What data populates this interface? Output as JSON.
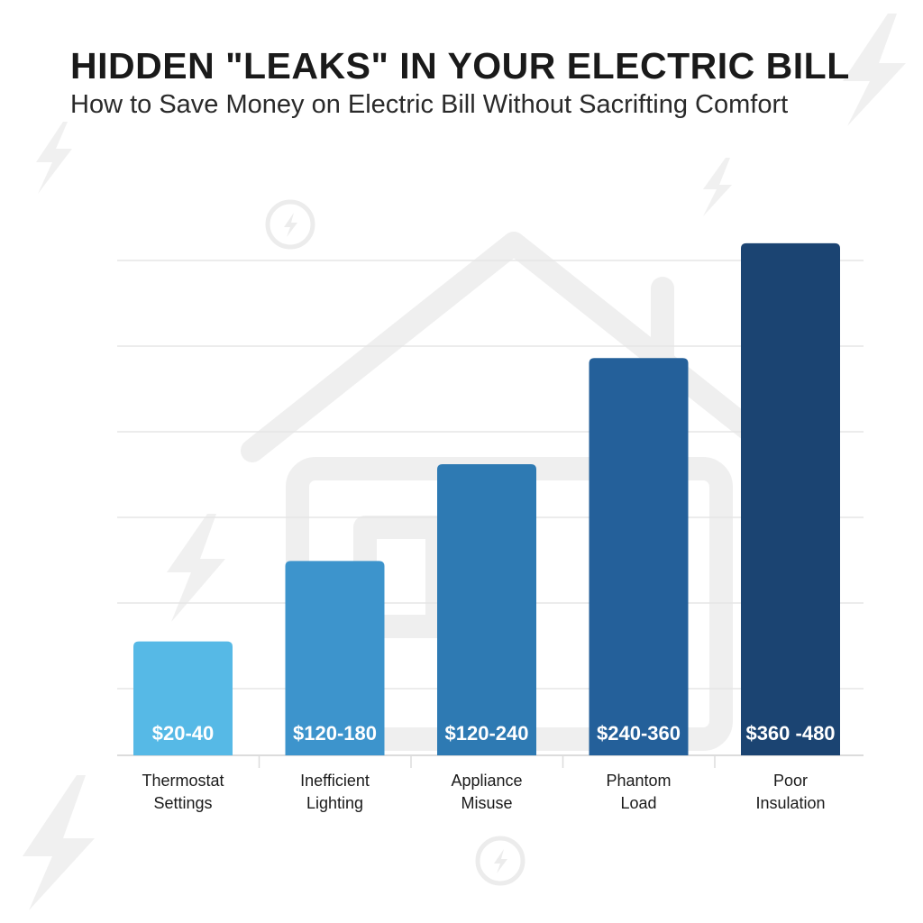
{
  "header": {
    "title": "HIDDEN \"LEAKS\" IN YOUR ELECTRIC BILL",
    "subtitle": "How to Save Money on Electric Bill Without Sacrifting Comfort"
  },
  "chart_data": {
    "type": "bar",
    "title": "HIDDEN \"LEAKS\" IN YOUR ELECTRIC BILL",
    "subtitle": "How to Save Money on Electric Bill Without Sacrifting Comfort",
    "categories": [
      [
        "Thermostat",
        "Settings"
      ],
      [
        "Inefficient",
        "Lighting"
      ],
      [
        "Appliance",
        "Misuse"
      ],
      [
        "Phantom",
        "Load"
      ],
      [
        "Poor",
        "Insulation"
      ]
    ],
    "data_labels": [
      "$20-40",
      "$120-180",
      "$120-240",
      "$240-360",
      "$360 -480"
    ],
    "values": [
      1.33,
      2.27,
      3.4,
      4.64,
      5.98
    ],
    "ylim": [
      0,
      6.2
    ],
    "grid": true,
    "y_axis_labels_shown": false,
    "colors": [
      "#56b9e6",
      "#3d94cc",
      "#2e7ab3",
      "#24609a",
      "#1b4472"
    ],
    "background_icons": [
      "house-icon",
      "lightning-bolt-icon",
      "power-circle-icon"
    ]
  }
}
